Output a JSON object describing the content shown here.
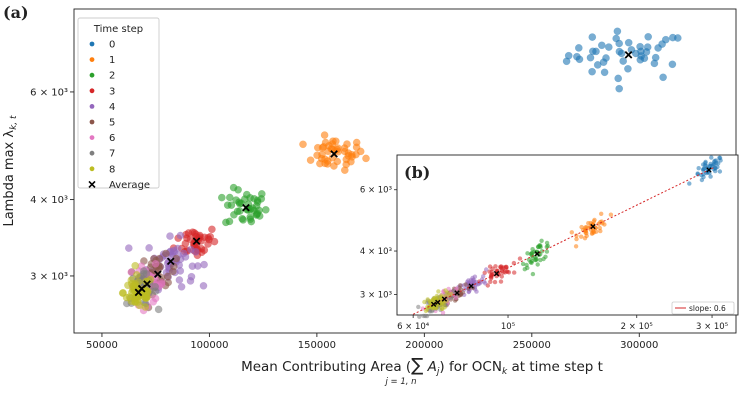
{
  "chart_data": {
    "type": "scatter",
    "panel_a": {
      "label": "(a)",
      "xlabel_prefix": "Mean Contributing Area (",
      "xlabel_sum": "∑",
      "xlabel_sub": "j = 1, n",
      "xlabel_term": "A",
      "xlabel_term_sub": "j",
      "xlabel_suffix": ") for OCN",
      "xlabel_k": "k",
      "xlabel_tail": " at time step t",
      "ylabel": "Lambda max λ",
      "ylabel_sub": "k, t",
      "x_ticks": [
        {
          "value": 50000,
          "label": "50000"
        },
        {
          "value": 100000,
          "label": "100000"
        },
        {
          "value": 150000,
          "label": "150000"
        },
        {
          "value": 200000,
          "label": "200000"
        },
        {
          "value": 250000,
          "label": "250000"
        },
        {
          "value": 300000,
          "label": "300000"
        }
      ],
      "y_ticks": [
        {
          "value": 3000,
          "label": "3 × 10³"
        },
        {
          "value": 4000,
          "label": "4 × 10³"
        },
        {
          "value": 6000,
          "label": "6 × 10³"
        }
      ],
      "xlim": [
        37000,
        345000
      ],
      "ylim_log": [
        2420,
        8200
      ]
    },
    "legend": {
      "title": "Time step",
      "average_label": "Average"
    },
    "series": [
      {
        "name": "0",
        "color": "#1f77b4",
        "avg_x": 295000,
        "avg_y": 6900,
        "spread_x": 20000,
        "spread_y": 450,
        "n": 45
      },
      {
        "name": "1",
        "color": "#ff7f0e",
        "avg_x": 158000,
        "avg_y": 4750,
        "spread_x": 10000,
        "spread_y": 200,
        "n": 45
      },
      {
        "name": "2",
        "color": "#2ca02c",
        "avg_x": 117000,
        "avg_y": 3880,
        "spread_x": 7000,
        "spread_y": 200,
        "n": 42
      },
      {
        "name": "3",
        "color": "#d62728",
        "avg_x": 94000,
        "avg_y": 3420,
        "spread_x": 7000,
        "spread_y": 150,
        "n": 42
      },
      {
        "name": "4",
        "color": "#9467bd",
        "avg_x": 82000,
        "avg_y": 3170,
        "spread_x": 8000,
        "spread_y": 200,
        "n": 50
      },
      {
        "name": "5",
        "color": "#8c564b",
        "avg_x": 76000,
        "avg_y": 3020,
        "spread_x": 6000,
        "spread_y": 150,
        "n": 40
      },
      {
        "name": "6",
        "color": "#e377c2",
        "avg_x": 71000,
        "avg_y": 2910,
        "spread_x": 6000,
        "spread_y": 150,
        "n": 40
      },
      {
        "name": "7",
        "color": "#7f7f7f",
        "avg_x": 68500,
        "avg_y": 2860,
        "spread_x": 5000,
        "spread_y": 120,
        "n": 35
      },
      {
        "name": "8",
        "color": "#bcbd22",
        "avg_x": 67000,
        "avg_y": 2820,
        "spread_x": 5000,
        "spread_y": 130,
        "n": 55
      }
    ],
    "panel_b": {
      "label": "(b)",
      "scale": "log-log",
      "x_ticks": [
        {
          "value": 60000,
          "label": "6 × 10⁴"
        },
        {
          "value": 100000,
          "label": "10⁵"
        },
        {
          "value": 200000,
          "label": "2 × 10⁵"
        },
        {
          "value": 300000,
          "label": "3 × 10⁵"
        }
      ],
      "y_ticks": [
        {
          "value": 3000,
          "label": "3 × 10³"
        },
        {
          "value": 4000,
          "label": "4 × 10³"
        },
        {
          "value": 6000,
          "label": "6 × 10³"
        }
      ],
      "xlim_log": [
        55000,
        345000
      ],
      "ylim_log": [
        2620,
        7550
      ],
      "fit_label": "slope: 0.6",
      "fit_color": "#d62728",
      "fit_x_range": [
        60000,
        305000
      ]
    }
  }
}
